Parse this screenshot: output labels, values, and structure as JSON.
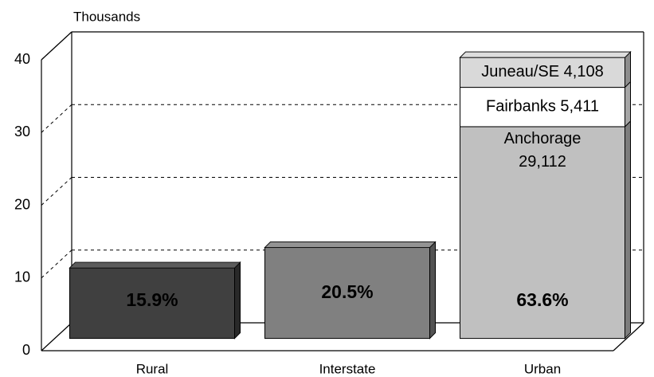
{
  "chart_data": {
    "type": "bar3d",
    "y_label": "Thousands",
    "categories": [
      "Rural",
      "Interstate",
      "Urban"
    ],
    "series": [
      {
        "name": "Anchorage",
        "colors": [
          "#404040",
          "#808080",
          "#c0c0c0"
        ],
        "values": [
          9.7,
          12.5,
          29.112
        ],
        "value_labels": [
          null,
          null,
          "29,112"
        ]
      },
      {
        "name": "Fairbanks",
        "color": "#ffffff",
        "values": [
          null,
          null,
          5.411
        ],
        "value_labels": [
          null,
          null,
          "5,411"
        ]
      },
      {
        "name": "Juneau/SE",
        "color": "#d9d9d9",
        "values": [
          null,
          null,
          4.108
        ],
        "value_labels": [
          null,
          null,
          "4,108"
        ]
      }
    ],
    "share_labels": [
      "15.9%",
      "20.5%",
      "63.6%"
    ],
    "ylim": [
      0,
      40
    ],
    "yticks": [
      0,
      10,
      20,
      30,
      40
    ],
    "grid": true
  }
}
